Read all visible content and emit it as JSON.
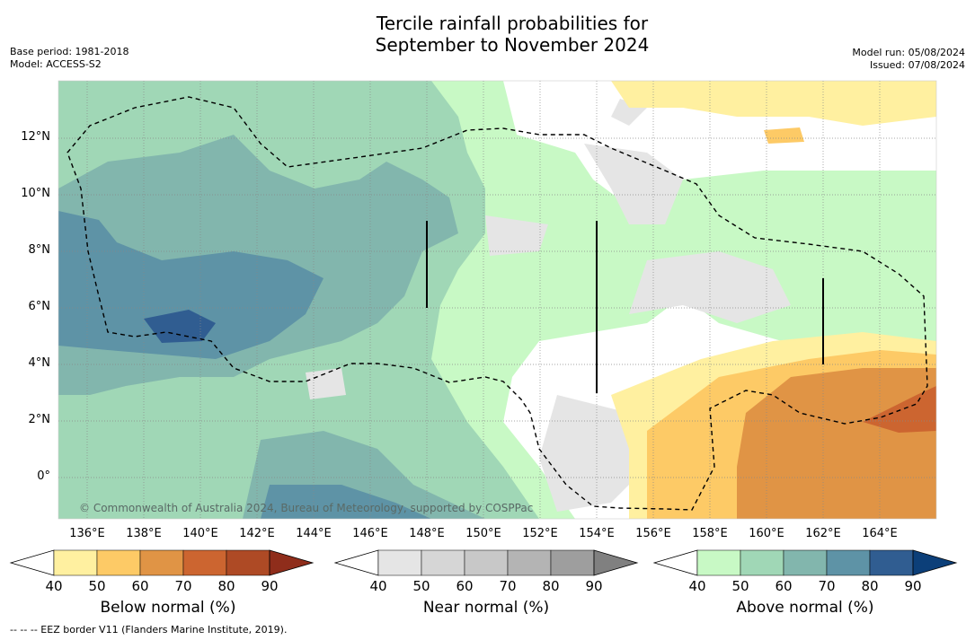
{
  "title": {
    "line1": "Tercile rainfall probabilities for",
    "line2": "September to November 2024"
  },
  "meta_left": {
    "base_period": "Base period: 1981-2018",
    "model": "Model: ACCESS-S2"
  },
  "meta_right": {
    "model_run": "Model run: 05/08/2024",
    "issued": "Issued: 07/08/2024"
  },
  "map": {
    "lat_labels": [
      "12°N",
      "10°N",
      "8°N",
      "6°N",
      "4°N",
      "2°N",
      "0°"
    ],
    "lon_labels": [
      "136°E",
      "138°E",
      "140°E",
      "142°E",
      "144°E",
      "146°E",
      "148°E",
      "150°E",
      "152°E",
      "154°E",
      "156°E",
      "158°E",
      "160°E",
      "162°E",
      "164°E"
    ],
    "copyright": "© Commonwealth of Australia 2024, Bureau of Meteorology, supported by COSPPac",
    "legend_lines": "EEZ border"
  },
  "colorbars": [
    {
      "label": "Below normal (%)",
      "ticks": [
        "40",
        "50",
        "60",
        "70",
        "80",
        "90"
      ],
      "colors": [
        "#ffffff",
        "#fff0a0",
        "#fdca66",
        "#e09445",
        "#cc6530",
        "#ae4a25",
        "#8f2d1b"
      ]
    },
    {
      "label": "Near normal (%)",
      "ticks": [
        "40",
        "50",
        "60",
        "70",
        "80",
        "90"
      ],
      "colors": [
        "#ffffff",
        "#e5e5e5",
        "#d6d6d6",
        "#c8c8c8",
        "#b4b4b4",
        "#9e9e9e",
        "#808080"
      ]
    },
    {
      "label": "Above normal (%)",
      "ticks": [
        "40",
        "50",
        "60",
        "70",
        "80",
        "90"
      ],
      "colors": [
        "#ffffff",
        "#c8f9c5",
        "#a0d7b6",
        "#82b6ad",
        "#5e93a6",
        "#305d91",
        "#0c3f79"
      ]
    }
  ],
  "footer": "--  --  -- EEZ border V11 (Flanders Marine Institute, 2019)."
}
